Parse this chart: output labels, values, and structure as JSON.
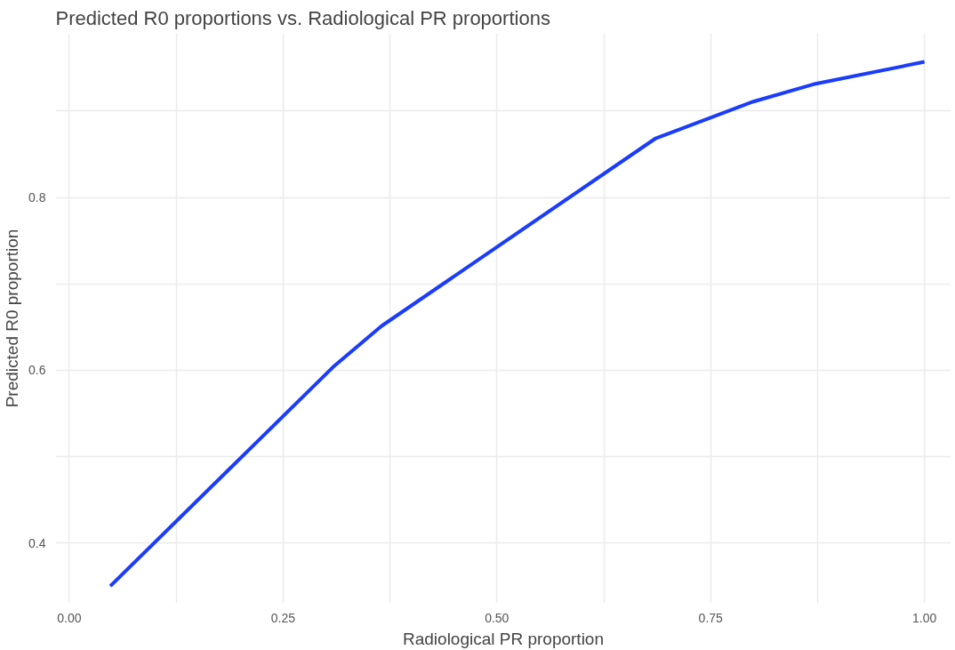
{
  "chart_data": {
    "type": "line",
    "title": "Predicted R0 proportions vs. Radiological PR proportions",
    "xlabel": "Radiological PR proportion",
    "ylabel": "Predicted R0 proportion",
    "x": [
      0.048,
      0.31,
      0.365,
      0.685,
      0.8,
      0.87,
      1.0
    ],
    "series": [
      {
        "color": "#1a3cff",
        "values": [
          0.35,
          0.605,
          0.651,
          0.868,
          0.911,
          0.931,
          0.957
        ]
      }
    ],
    "xlim": [
      -0.016,
      1.031
    ],
    "ylim": [
      0.33,
      0.99
    ],
    "xticks": [
      {
        "value": 0.0,
        "label": "0.00"
      },
      {
        "value": 0.125,
        "label": null
      },
      {
        "value": 0.25,
        "label": "0.25"
      },
      {
        "value": 0.375,
        "label": null
      },
      {
        "value": 0.5,
        "label": "0.50"
      },
      {
        "value": 0.625,
        "label": null
      },
      {
        "value": 0.75,
        "label": "0.75"
      },
      {
        "value": 0.875,
        "label": null
      },
      {
        "value": 1.0,
        "label": "1.00"
      }
    ],
    "yticks": [
      0.4,
      {
        "value": 0.5,
        "label": null
      },
      0.6,
      {
        "value": 0.7,
        "label": null
      },
      0.8,
      {
        "value": 0.9,
        "label": null
      }
    ],
    "grid": true,
    "marker": "none",
    "line_style": "solid"
  }
}
